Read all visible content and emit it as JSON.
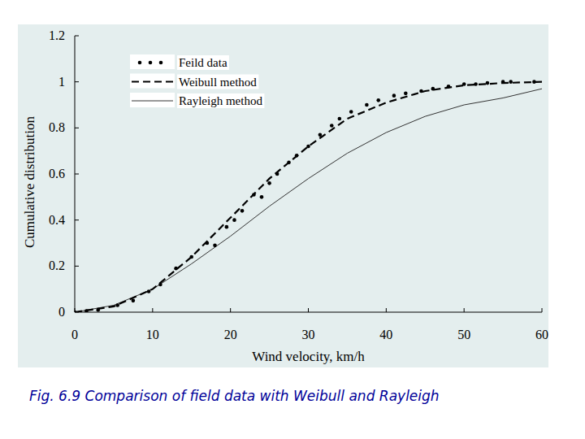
{
  "chart_data": {
    "type": "line",
    "title": "Fig. 6.9 Comparison of field data with Weibull and Rayleigh",
    "x_label": "Wind velocity, km/h",
    "y_label": "Cumulative distribution",
    "xlim": [
      0,
      60
    ],
    "xticks": [
      0,
      10,
      20,
      30,
      40,
      50,
      60
    ],
    "ylim": [
      0,
      1.2
    ],
    "yticks": [
      0,
      0.2,
      0.4,
      0.6,
      0.8,
      1,
      1.2
    ],
    "grid": false,
    "legend": "upper left",
    "series": [
      {
        "name": "Feild data",
        "type": "scatter",
        "marker": "circle",
        "color": "#000000",
        "x": [
          0,
          1.5,
          3,
          5.5,
          7.5,
          9.5,
          11,
          13,
          15,
          17,
          18,
          19.5,
          20.5,
          21.5,
          23,
          24,
          25,
          26,
          27.5,
          28.5,
          30,
          31.5,
          33,
          34,
          35.5,
          37.5,
          39,
          41,
          42.5,
          44.5,
          46,
          48,
          50,
          51.5,
          53,
          55,
          56,
          59
        ],
        "values": [
          0,
          0.005,
          0.01,
          0.03,
          0.05,
          0.09,
          0.12,
          0.19,
          0.24,
          0.3,
          0.29,
          0.37,
          0.4,
          0.44,
          0.51,
          0.5,
          0.56,
          0.6,
          0.65,
          0.68,
          0.72,
          0.77,
          0.81,
          0.84,
          0.87,
          0.9,
          0.92,
          0.94,
          0.95,
          0.96,
          0.97,
          0.98,
          0.99,
          0.99,
          0.995,
          1.0,
          1.0,
          1.0
        ]
      },
      {
        "name": "Weibull method",
        "type": "line",
        "line_style": "dashed",
        "color": "#000000",
        "x": [
          0,
          5,
          10,
          15,
          20,
          25,
          30,
          35,
          40,
          45,
          50,
          55,
          60
        ],
        "values": [
          0,
          0.025,
          0.1,
          0.24,
          0.41,
          0.58,
          0.72,
          0.84,
          0.91,
          0.96,
          0.985,
          0.995,
          1.0
        ]
      },
      {
        "name": "Rayleigh method",
        "type": "line",
        "line_style": "solid",
        "color": "#333333",
        "x": [
          0,
          5,
          10,
          15,
          20,
          25,
          30,
          35,
          40,
          45,
          50,
          55,
          60
        ],
        "values": [
          0,
          0.03,
          0.1,
          0.21,
          0.33,
          0.46,
          0.58,
          0.69,
          0.78,
          0.85,
          0.9,
          0.93,
          0.97
        ]
      }
    ]
  }
}
